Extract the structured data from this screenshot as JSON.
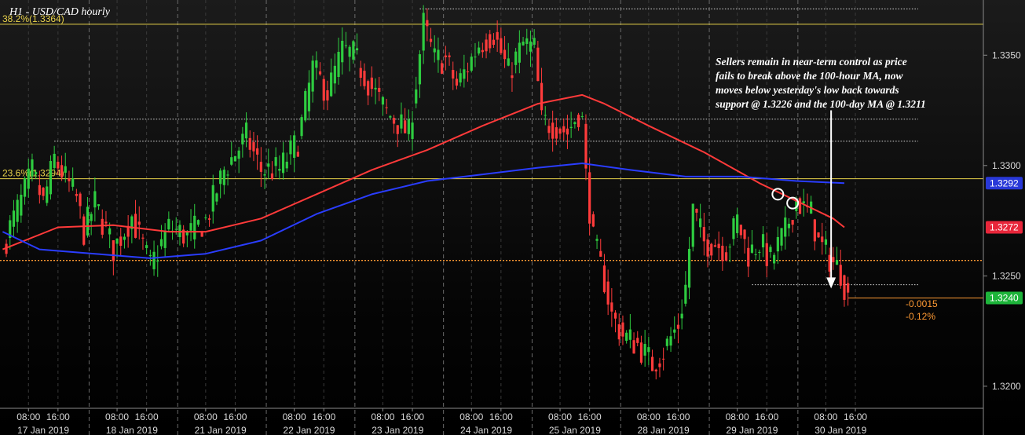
{
  "colors": {
    "up": "#2ecc40",
    "down": "#ff3b3b",
    "ma100": "#ff3a3a",
    "ma200": "#2a3dff",
    "fib": "#e8d24a",
    "orange": "#ff9a33",
    "last_tag": "#1db43a",
    "ma100_tag": "#e8263a",
    "ma200_tag": "#2838d8"
  },
  "chart_data": {
    "type": "candlestick",
    "title": "H1 - USD/CAD hourly",
    "ylim": [
      1.319,
      1.3375
    ],
    "y_ticks": [
      "1.3200",
      "1.3250",
      "1.3300",
      "1.3350"
    ],
    "x_ticks": [
      {
        "label": "08:00",
        "bar": 7
      },
      {
        "label": "16:00",
        "bar": 15
      },
      {
        "label": "08:00",
        "bar": 31
      },
      {
        "label": "16:00",
        "bar": 39
      },
      {
        "label": "08:00",
        "bar": 55
      },
      {
        "label": "16:00",
        "bar": 63
      },
      {
        "label": "08:00",
        "bar": 79
      },
      {
        "label": "16:00",
        "bar": 87
      },
      {
        "label": "08:00",
        "bar": 103
      },
      {
        "label": "16:00",
        "bar": 111
      },
      {
        "label": "08:00",
        "bar": 127
      },
      {
        "label": "16:00",
        "bar": 135
      },
      {
        "label": "08:00",
        "bar": 151
      },
      {
        "label": "16:00",
        "bar": 159
      },
      {
        "label": "08:00",
        "bar": 175
      },
      {
        "label": "16:00",
        "bar": 183
      },
      {
        "label": "08:00",
        "bar": 199
      },
      {
        "label": "16:00",
        "bar": 207
      },
      {
        "label": "08:00",
        "bar": 223
      },
      {
        "label": "16:00",
        "bar": 231
      }
    ],
    "date_labels": [
      {
        "label": "17 Jan 2019",
        "bar": 11
      },
      {
        "label": "18 Jan 2019",
        "bar": 35
      },
      {
        "label": "21 Jan 2019",
        "bar": 59
      },
      {
        "label": "22 Jan 2019",
        "bar": 83
      },
      {
        "label": "23 Jan 2019",
        "bar": 107
      },
      {
        "label": "24 Jan 2019",
        "bar": 131
      },
      {
        "label": "25 Jan 2019",
        "bar": 155
      },
      {
        "label": "28 Jan 2019",
        "bar": 179
      },
      {
        "label": "29 Jan 2019",
        "bar": 203
      },
      {
        "label": "30 Jan 2019",
        "bar": 227
      }
    ],
    "day_separators": [
      23,
      47,
      71,
      95,
      119,
      143,
      167,
      191,
      215
    ],
    "fib_levels": [
      {
        "label": "38.2%(1.3364)",
        "value": 1.3364
      },
      {
        "label": "23.6%(1.3294)",
        "value": 1.3294
      }
    ],
    "support_level": 1.3257,
    "dotted_levels": [
      {
        "value": 1.3371,
        "from_bar": 113,
        "to_bar": 248
      },
      {
        "value": 1.3321,
        "from_bar": 14,
        "to_bar": 248
      },
      {
        "value": 1.3311,
        "from_bar": 14,
        "to_bar": 248
      },
      {
        "value": 1.3246,
        "from_bar": 203,
        "to_bar": 248
      }
    ],
    "anchors": [
      [
        0,
        1.3262
      ],
      [
        2,
        1.3272
      ],
      [
        5,
        1.3284
      ],
      [
        8,
        1.3297
      ],
      [
        11,
        1.3283
      ],
      [
        14,
        1.3303
      ],
      [
        17,
        1.3294
      ],
      [
        20,
        1.3285
      ],
      [
        22,
        1.327
      ],
      [
        25,
        1.3283
      ],
      [
        30,
        1.3262
      ],
      [
        35,
        1.3277
      ],
      [
        40,
        1.3254
      ],
      [
        45,
        1.3272
      ],
      [
        50,
        1.3268
      ],
      [
        55,
        1.3275
      ],
      [
        60,
        1.3298
      ],
      [
        66,
        1.3313
      ],
      [
        70,
        1.3298
      ],
      [
        75,
        1.3298
      ],
      [
        80,
        1.3311
      ],
      [
        84,
        1.3344
      ],
      [
        88,
        1.3333
      ],
      [
        92,
        1.3352
      ],
      [
        95,
        1.335
      ],
      [
        99,
        1.3338
      ],
      [
        104,
        1.3324
      ],
      [
        108,
        1.3318
      ],
      [
        110,
        1.3314
      ],
      [
        112,
        1.3338
      ],
      [
        114,
        1.3364
      ],
      [
        117,
        1.3348
      ],
      [
        120,
        1.3348
      ],
      [
        123,
        1.3336
      ],
      [
        126,
        1.3345
      ],
      [
        129,
        1.3355
      ],
      [
        133,
        1.336
      ],
      [
        137,
        1.3342
      ],
      [
        141,
        1.3355
      ],
      [
        144,
        1.3353
      ],
      [
        146,
        1.332
      ],
      [
        150,
        1.3318
      ],
      [
        153,
        1.3315
      ],
      [
        156,
        1.3324
      ],
      [
        157,
        1.332
      ],
      [
        158,
        1.3295
      ],
      [
        160,
        1.3266
      ],
      [
        163,
        1.3248
      ],
      [
        165,
        1.3232
      ],
      [
        168,
        1.3223
      ],
      [
        172,
        1.3219
      ],
      [
        176,
        1.321
      ],
      [
        179,
        1.3216
      ],
      [
        183,
        1.3228
      ],
      [
        185,
        1.3245
      ],
      [
        187,
        1.328
      ],
      [
        190,
        1.3265
      ],
      [
        193,
        1.3265
      ],
      [
        196,
        1.3262
      ],
      [
        199,
        1.3275
      ],
      [
        202,
        1.326
      ],
      [
        205,
        1.3265
      ],
      [
        208,
        1.3257
      ],
      [
        212,
        1.327
      ],
      [
        215,
        1.3285
      ],
      [
        217,
        1.328
      ],
      [
        219,
        1.3278
      ],
      [
        221,
        1.3265
      ],
      [
        224,
        1.3258
      ],
      [
        227,
        1.3252
      ],
      [
        229,
        1.324
      ]
    ],
    "series": [
      {
        "name": "100-hour MA",
        "color": "#ff3a3a",
        "points": [
          [
            0,
            1.3262
          ],
          [
            15,
            1.3272
          ],
          [
            30,
            1.3273
          ],
          [
            45,
            1.327
          ],
          [
            55,
            1.327
          ],
          [
            70,
            1.3276
          ],
          [
            85,
            1.3287
          ],
          [
            100,
            1.3298
          ],
          [
            115,
            1.3307
          ],
          [
            130,
            1.3318
          ],
          [
            145,
            1.3328
          ],
          [
            157,
            1.3332
          ],
          [
            163,
            1.3328
          ],
          [
            175,
            1.3318
          ],
          [
            190,
            1.3306
          ],
          [
            205,
            1.3292
          ],
          [
            215,
            1.3284
          ],
          [
            225,
            1.3276
          ],
          [
            228,
            1.3272
          ]
        ]
      },
      {
        "name": "200-hour MA",
        "color": "#2a3dff",
        "points": [
          [
            0,
            1.327
          ],
          [
            10,
            1.3262
          ],
          [
            25,
            1.326
          ],
          [
            40,
            1.3258
          ],
          [
            55,
            1.326
          ],
          [
            70,
            1.3266
          ],
          [
            85,
            1.3278
          ],
          [
            100,
            1.3287
          ],
          [
            115,
            1.3293
          ],
          [
            130,
            1.3296
          ],
          [
            145,
            1.3299
          ],
          [
            157,
            1.3301
          ],
          [
            170,
            1.3298
          ],
          [
            185,
            1.3295
          ],
          [
            200,
            1.3295
          ],
          [
            215,
            1.3293
          ],
          [
            228,
            1.3292
          ]
        ]
      }
    ],
    "circles": [
      {
        "bar": 210,
        "value": 1.3287
      },
      {
        "bar": 214,
        "value": 1.3283
      }
    ],
    "arrow": {
      "bar": 224,
      "from": 1.3325,
      "to": 1.3245
    },
    "annotation": [
      "Sellers remain in near-term control as price",
      "fails to break above the 100-hour MA, now",
      "moves below yesterday's low back towards",
      "support @ 1.3226 and the 100-day MA @ 1.3211"
    ],
    "change": {
      "abs": "-0.0015",
      "pct": "-0.12%"
    },
    "price_tags": [
      {
        "label": "1.3292",
        "value": 1.3292,
        "color": "#2838d8"
      },
      {
        "label": "1.3272",
        "value": 1.3272,
        "color": "#e8263a"
      },
      {
        "label": "1.3240",
        "value": 1.324,
        "color": "#1db43a"
      }
    ]
  }
}
